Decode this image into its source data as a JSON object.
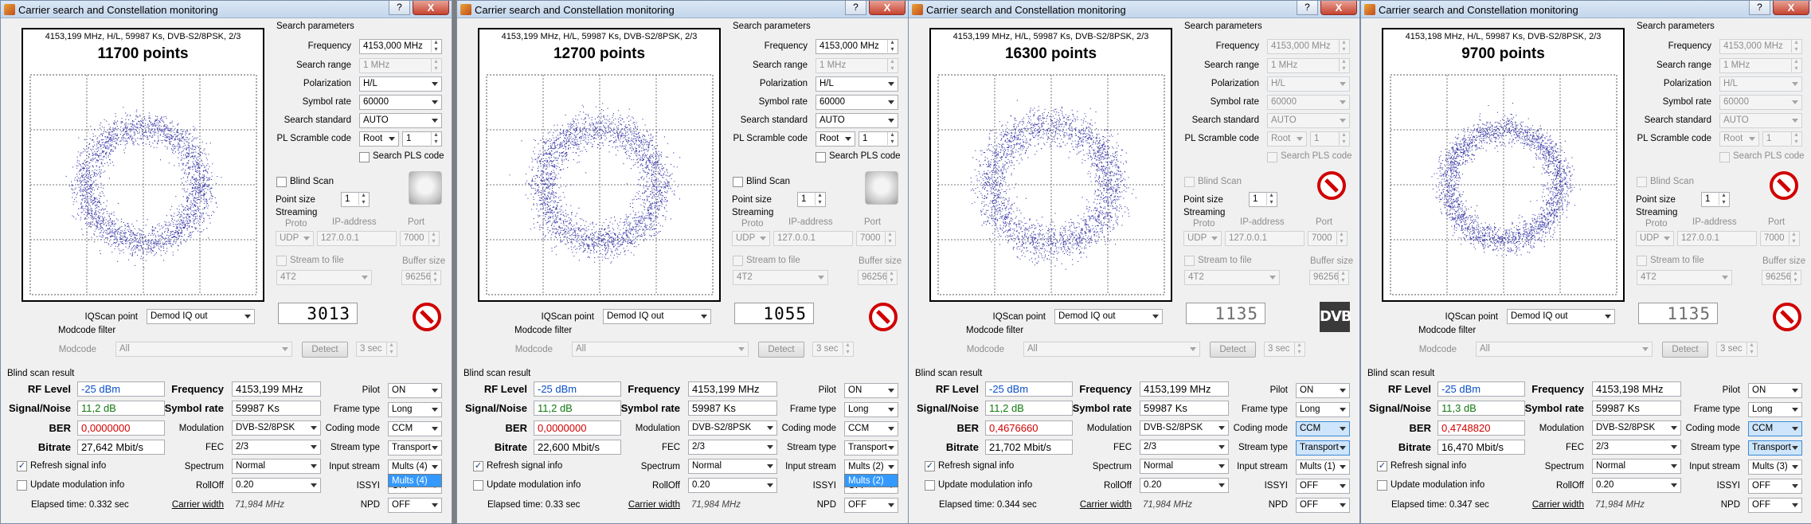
{
  "windows": [
    {
      "title": "Carrier search and Constellation monitoring",
      "header": "4153,199 MHz, H/L, 59987 Ks, DVB-S2/8PSK, 2/3",
      "points": "11700 points",
      "frequency": "4153,000 MHz",
      "search_range": "1 MHz",
      "polarization": "H/L",
      "symbol_rate": "60000",
      "search_standard": "AUTO",
      "pl_scramble": "Root",
      "pl_scramble_n": "1",
      "point_size": "1",
      "proto": "UDP",
      "ip": "127.0.0.1",
      "port": "7000",
      "stream_file": "4T2",
      "buffer": "96256",
      "iqscan": "Demod IQ out",
      "modcode": "All",
      "modcode_time": "3 sec",
      "counter": "3013",
      "counter_dim": false,
      "icon": "stop-icon",
      "search_enabled": true,
      "rf_level": "-25 dBm",
      "snr": "11,2 dB",
      "ber": "0,0000000",
      "bitrate": "27,642 Mbit/s",
      "freq_res": "4153,199 MHz",
      "symrate_res": "59987 Ks",
      "modulation": "DVB-S2/8PSK",
      "fec": "2/3",
      "spectrum": "Normal",
      "rolloff": "0.20",
      "carrier_width": "71,984 MHz",
      "pilot": "ON",
      "frame_type": "Long",
      "coding_mode": "CCM",
      "stream_type": "Transport",
      "input_stream": "Mults (4)",
      "issyi": "OFF",
      "npd": "OFF",
      "elapsed": "Elapsed time: 0.332 sec",
      "dropdown": "Mults (4)",
      "hl": false,
      "dot_color": "#3e3da8",
      "ring": {
        "r": 58,
        "w": 17
      }
    },
    {
      "title": "Carrier search and Constellation monitoring",
      "header": "4153,199 MHz, H/L, 59987 Ks, DVB-S2/8PSK, 2/3",
      "points": "12700 points",
      "frequency": "4153,000 MHz",
      "search_range": "1 MHz",
      "polarization": "H/L",
      "symbol_rate": "60000",
      "search_standard": "AUTO",
      "pl_scramble": "Root",
      "pl_scramble_n": "1",
      "point_size": "1",
      "proto": "UDP",
      "ip": "127.0.0.1",
      "port": "7000",
      "stream_file": "4T2",
      "buffer": "96256",
      "iqscan": "Demod IQ out",
      "modcode": "All",
      "modcode_time": "3 sec",
      "counter": "1055",
      "counter_dim": false,
      "icon": "stop-icon",
      "search_enabled": true,
      "rf_level": "-25 dBm",
      "snr": "11,2 dB",
      "ber": "0,0000000",
      "bitrate": "22,600 Mbit/s",
      "freq_res": "4153,199 MHz",
      "symrate_res": "59987 Ks",
      "modulation": "DVB-S2/8PSK",
      "fec": "2/3",
      "spectrum": "Normal",
      "rolloff": "0.20",
      "carrier_width": "71,984 MHz",
      "pilot": "ON",
      "frame_type": "Long",
      "coding_mode": "CCM",
      "stream_type": "Transport",
      "input_stream": "Mults (2)",
      "issyi": "OFF",
      "npd": "OFF",
      "elapsed": "Elapsed time: 0.33 sec",
      "dropdown": "Mults (2)",
      "hl": false,
      "dot_color": "#3e3da8",
      "ring": {
        "r": 58,
        "w": 19
      }
    },
    {
      "title": "Carrier search and Constellation monitoring",
      "header": "4153,199 MHz, H/L, 59987 Ks, DVB-S2/8PSK, 2/3",
      "points": "16300 points",
      "frequency": "4153,000 MHz",
      "search_range": "1 MHz",
      "polarization": "H/L",
      "symbol_rate": "60000",
      "search_standard": "AUTO",
      "pl_scramble": "Root",
      "pl_scramble_n": "1",
      "point_size": "1",
      "proto": "UDP",
      "ip": "127.0.0.1",
      "port": "7000",
      "stream_file": "4T2",
      "buffer": "96256",
      "iqscan": "Demod IQ out",
      "modcode": "All",
      "modcode_time": "3 sec",
      "counter": "1135",
      "counter_dim": true,
      "icon": "dvb-icon",
      "search_enabled": false,
      "rf_level": "-25 dBm",
      "snr": "11,2 dB",
      "ber": "0,4676660",
      "bitrate": "21,702 Mbit/s",
      "freq_res": "4153,199 MHz",
      "symrate_res": "59987 Ks",
      "modulation": "DVB-S2/8PSK",
      "fec": "2/3",
      "spectrum": "Normal",
      "rolloff": "0.20",
      "carrier_width": "71,984 MHz",
      "pilot": "ON",
      "frame_type": "Long",
      "coding_mode": "CCM",
      "stream_type": "Transport",
      "input_stream": "Mults (1)",
      "issyi": "OFF",
      "npd": "OFF",
      "elapsed": "Elapsed time: 0.344 sec",
      "dropdown": "",
      "hl": true,
      "dot_color": "#3e3da8",
      "ring": {
        "r": 60,
        "w": 20
      }
    },
    {
      "title": "Carrier search and Constellation monitoring",
      "header": "4153,198 MHz, H/L, 59987 Ks, DVB-S2/8PSK, 2/3",
      "points": "9700 points",
      "frequency": "4153,000 MHz",
      "search_range": "1 MHz",
      "polarization": "H/L",
      "symbol_rate": "60000",
      "search_standard": "AUTO",
      "pl_scramble": "Root",
      "pl_scramble_n": "1",
      "point_size": "1",
      "proto": "UDP",
      "ip": "127.0.0.1",
      "port": "7000",
      "stream_file": "4T2",
      "buffer": "96256",
      "iqscan": "Demod IQ out",
      "modcode": "All",
      "modcode_time": "3 sec",
      "counter": "1135",
      "counter_dim": true,
      "icon": "stop-icon",
      "search_enabled": false,
      "rf_level": "-25 dBm",
      "snr": "11,3 dB",
      "ber": "0,4748820",
      "bitrate": "16,470 Mbit/s",
      "freq_res": "4153,198 MHz",
      "symrate_res": "59987 Ks",
      "modulation": "DVB-S2/8PSK",
      "fec": "2/3",
      "spectrum": "Normal",
      "rolloff": "0.20",
      "carrier_width": "71,984 MHz",
      "pilot": "ON",
      "frame_type": "Long",
      "coding_mode": "CCM",
      "stream_type": "Transport",
      "input_stream": "Mults (3)",
      "issyi": "OFF",
      "npd": "OFF",
      "elapsed": "Elapsed time: 0.347 sec",
      "dropdown": "",
      "hl": true,
      "dot_color": "#3e3da8",
      "ring": {
        "r": 56,
        "w": 15
      }
    }
  ],
  "labels": {
    "search_params": "Search parameters",
    "frequency": "Frequency",
    "search_range": "Search range",
    "polarization": "Polarization",
    "symbol_rate": "Symbol rate",
    "search_standard": "Search standard",
    "pl_scramble": "PL Scramble code",
    "search_pls": "Search PLS code",
    "blind_scan": "Blind Scan",
    "point_size": "Point size",
    "streaming": "Streaming",
    "proto": "Proto",
    "ip": "IP-address",
    "port": "Port",
    "stream_to_file": "Stream to file",
    "buffer_size": "Buffer size",
    "iqscan": "IQScan point",
    "modcode_filter": "Modcode filter",
    "modcode": "Modcode",
    "detect": "Detect",
    "blind_result": "Blind scan result",
    "rf_level": "RF Level",
    "snr": "Signal/Noise",
    "ber": "BER",
    "bitrate": "Bitrate",
    "frequency_res": "Frequency",
    "symbol_rate_res": "Symbol rate",
    "modulation": "Modulation",
    "fec": "FEC",
    "spectrum": "Spectrum",
    "rolloff": "RollOff",
    "carrier_width": "Carrier width",
    "pilot": "Pilot",
    "frame_type": "Frame type",
    "coding_mode": "Coding mode",
    "stream_type": "Stream type",
    "input_stream": "Input stream",
    "issyi": "ISSYI",
    "npd": "NPD",
    "refresh": "Refresh signal info",
    "update_mod": "Update modulation info",
    "help_btn": "?",
    "close_btn": "X",
    "dvb_text": "DVB"
  }
}
